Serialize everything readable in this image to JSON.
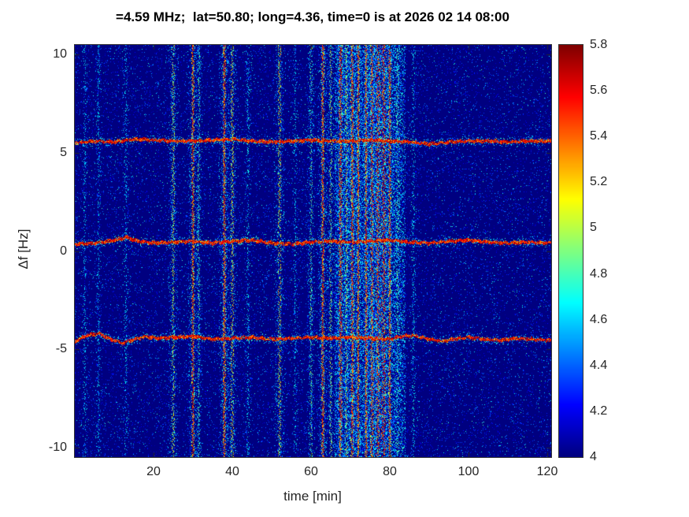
{
  "figure": {
    "title": "=4.59 MHz;  lat=50.80; long=4.36, time=0 is at 2026 02 14 08:00"
  },
  "chart_data": {
    "type": "heatmap",
    "title": "=4.59 MHz;  lat=50.80; long=4.36, time=0 is at 2026 02 14 08:00",
    "xlabel": "time [min]",
    "ylabel": "Δf [Hz]",
    "xlim": [
      0,
      121
    ],
    "ylim": [
      -10.5,
      10.5
    ],
    "xticks": [
      20,
      40,
      60,
      80,
      100,
      120
    ],
    "yticks": [
      10,
      5,
      0,
      -5,
      -10
    ],
    "grid": false,
    "colorbar": {
      "range": [
        4,
        5.8
      ],
      "ticks": [
        4,
        4.2,
        4.4,
        4.6,
        4.8,
        5,
        5.2,
        5.4,
        5.6,
        5.8
      ],
      "colormap": "jet",
      "position": "right"
    },
    "background_value": 4,
    "doppler_traces": [
      {
        "name": "upper-trace",
        "mean_hz": 5.6,
        "level": 5.6,
        "points": [
          [
            0,
            5.5
          ],
          [
            5,
            5.6
          ],
          [
            10,
            5.55
          ],
          [
            15,
            5.7
          ],
          [
            20,
            5.65
          ],
          [
            25,
            5.6
          ],
          [
            30,
            5.6
          ],
          [
            35,
            5.65
          ],
          [
            40,
            5.7
          ],
          [
            45,
            5.6
          ],
          [
            50,
            5.55
          ],
          [
            55,
            5.6
          ],
          [
            60,
            5.65
          ],
          [
            65,
            5.6
          ],
          [
            70,
            5.6
          ],
          [
            75,
            5.65
          ],
          [
            80,
            5.6
          ],
          [
            85,
            5.55
          ],
          [
            90,
            5.45
          ],
          [
            95,
            5.55
          ],
          [
            100,
            5.6
          ],
          [
            105,
            5.6
          ],
          [
            110,
            5.55
          ],
          [
            115,
            5.6
          ],
          [
            121,
            5.6
          ]
        ]
      },
      {
        "name": "middle-trace",
        "mean_hz": 0.45,
        "level": 5.6,
        "points": [
          [
            0,
            0.35
          ],
          [
            5,
            0.4
          ],
          [
            10,
            0.55
          ],
          [
            13,
            0.7
          ],
          [
            16,
            0.5
          ],
          [
            20,
            0.4
          ],
          [
            25,
            0.45
          ],
          [
            30,
            0.5
          ],
          [
            35,
            0.4
          ],
          [
            40,
            0.5
          ],
          [
            45,
            0.55
          ],
          [
            50,
            0.4
          ],
          [
            55,
            0.35
          ],
          [
            60,
            0.45
          ],
          [
            65,
            0.5
          ],
          [
            70,
            0.45
          ],
          [
            75,
            0.5
          ],
          [
            80,
            0.55
          ],
          [
            85,
            0.45
          ],
          [
            90,
            0.4
          ],
          [
            95,
            0.5
          ],
          [
            100,
            0.55
          ],
          [
            105,
            0.45
          ],
          [
            110,
            0.4
          ],
          [
            115,
            0.45
          ],
          [
            121,
            0.4
          ]
        ]
      },
      {
        "name": "lower-trace",
        "mean_hz": -4.45,
        "level": 5.6,
        "points": [
          [
            0,
            -4.6
          ],
          [
            3,
            -4.3
          ],
          [
            6,
            -4.2
          ],
          [
            9,
            -4.5
          ],
          [
            12,
            -4.7
          ],
          [
            15,
            -4.5
          ],
          [
            18,
            -4.35
          ],
          [
            21,
            -4.45
          ],
          [
            25,
            -4.4
          ],
          [
            30,
            -4.35
          ],
          [
            35,
            -4.5
          ],
          [
            40,
            -4.45
          ],
          [
            45,
            -4.4
          ],
          [
            50,
            -4.5
          ],
          [
            55,
            -4.45
          ],
          [
            60,
            -4.4
          ],
          [
            65,
            -4.45
          ],
          [
            70,
            -4.4
          ],
          [
            75,
            -4.45
          ],
          [
            80,
            -4.5
          ],
          [
            83,
            -4.35
          ],
          [
            86,
            -4.3
          ],
          [
            90,
            -4.5
          ],
          [
            93,
            -4.6
          ],
          [
            96,
            -4.5
          ],
          [
            100,
            -4.4
          ],
          [
            104,
            -4.5
          ],
          [
            108,
            -4.55
          ],
          [
            112,
            -4.45
          ],
          [
            116,
            -4.5
          ],
          [
            121,
            -4.55
          ]
        ]
      }
    ],
    "interference_stripes": [
      {
        "t_min": 2.5,
        "relative_intensity": 0.3,
        "width_min": 0.6
      },
      {
        "t_min": 6,
        "relative_intensity": 0.3,
        "width_min": 0.5
      },
      {
        "t_min": 13,
        "relative_intensity": 0.3,
        "width_min": 0.5
      },
      {
        "t_min": 25,
        "relative_intensity": 0.65,
        "width_min": 0.7
      },
      {
        "t_min": 30,
        "relative_intensity": 0.8,
        "width_min": 0.8
      },
      {
        "t_min": 31.5,
        "relative_intensity": 0.5,
        "width_min": 0.5
      },
      {
        "t_min": 38,
        "relative_intensity": 0.85,
        "width_min": 0.8
      },
      {
        "t_min": 40,
        "relative_intensity": 0.75,
        "width_min": 0.7
      },
      {
        "t_min": 44,
        "relative_intensity": 0.35,
        "width_min": 0.5
      },
      {
        "t_min": 52,
        "relative_intensity": 0.75,
        "width_min": 0.8
      },
      {
        "t_min": 56,
        "relative_intensity": 0.3,
        "width_min": 0.5
      },
      {
        "t_min": 60,
        "relative_intensity": 0.5,
        "width_min": 0.6
      },
      {
        "t_min": 63,
        "relative_intensity": 0.85,
        "width_min": 0.8
      },
      {
        "t_min": 65,
        "relative_intensity": 0.6,
        "width_min": 0.6
      },
      {
        "t_min": 67.5,
        "relative_intensity": 0.9,
        "width_min": 1.0
      },
      {
        "t_min": 69,
        "relative_intensity": 0.7,
        "width_min": 0.6
      },
      {
        "t_min": 70.5,
        "relative_intensity": 0.9,
        "width_min": 0.8
      },
      {
        "t_min": 72,
        "relative_intensity": 0.8,
        "width_min": 0.7
      },
      {
        "t_min": 74,
        "relative_intensity": 0.85,
        "width_min": 0.8
      },
      {
        "t_min": 75.5,
        "relative_intensity": 0.9,
        "width_min": 0.9
      },
      {
        "t_min": 77,
        "relative_intensity": 0.95,
        "width_min": 1.2
      },
      {
        "t_min": 78.5,
        "relative_intensity": 1.0,
        "width_min": 1.5
      },
      {
        "t_min": 80,
        "relative_intensity": 0.8,
        "width_min": 0.8
      },
      {
        "t_min": 82,
        "relative_intensity": 0.5,
        "width_min": 0.6
      },
      {
        "t_min": 86,
        "relative_intensity": 0.35,
        "width_min": 0.5
      }
    ],
    "haze_band": {
      "t_start": 66,
      "t_end": 84
    }
  }
}
